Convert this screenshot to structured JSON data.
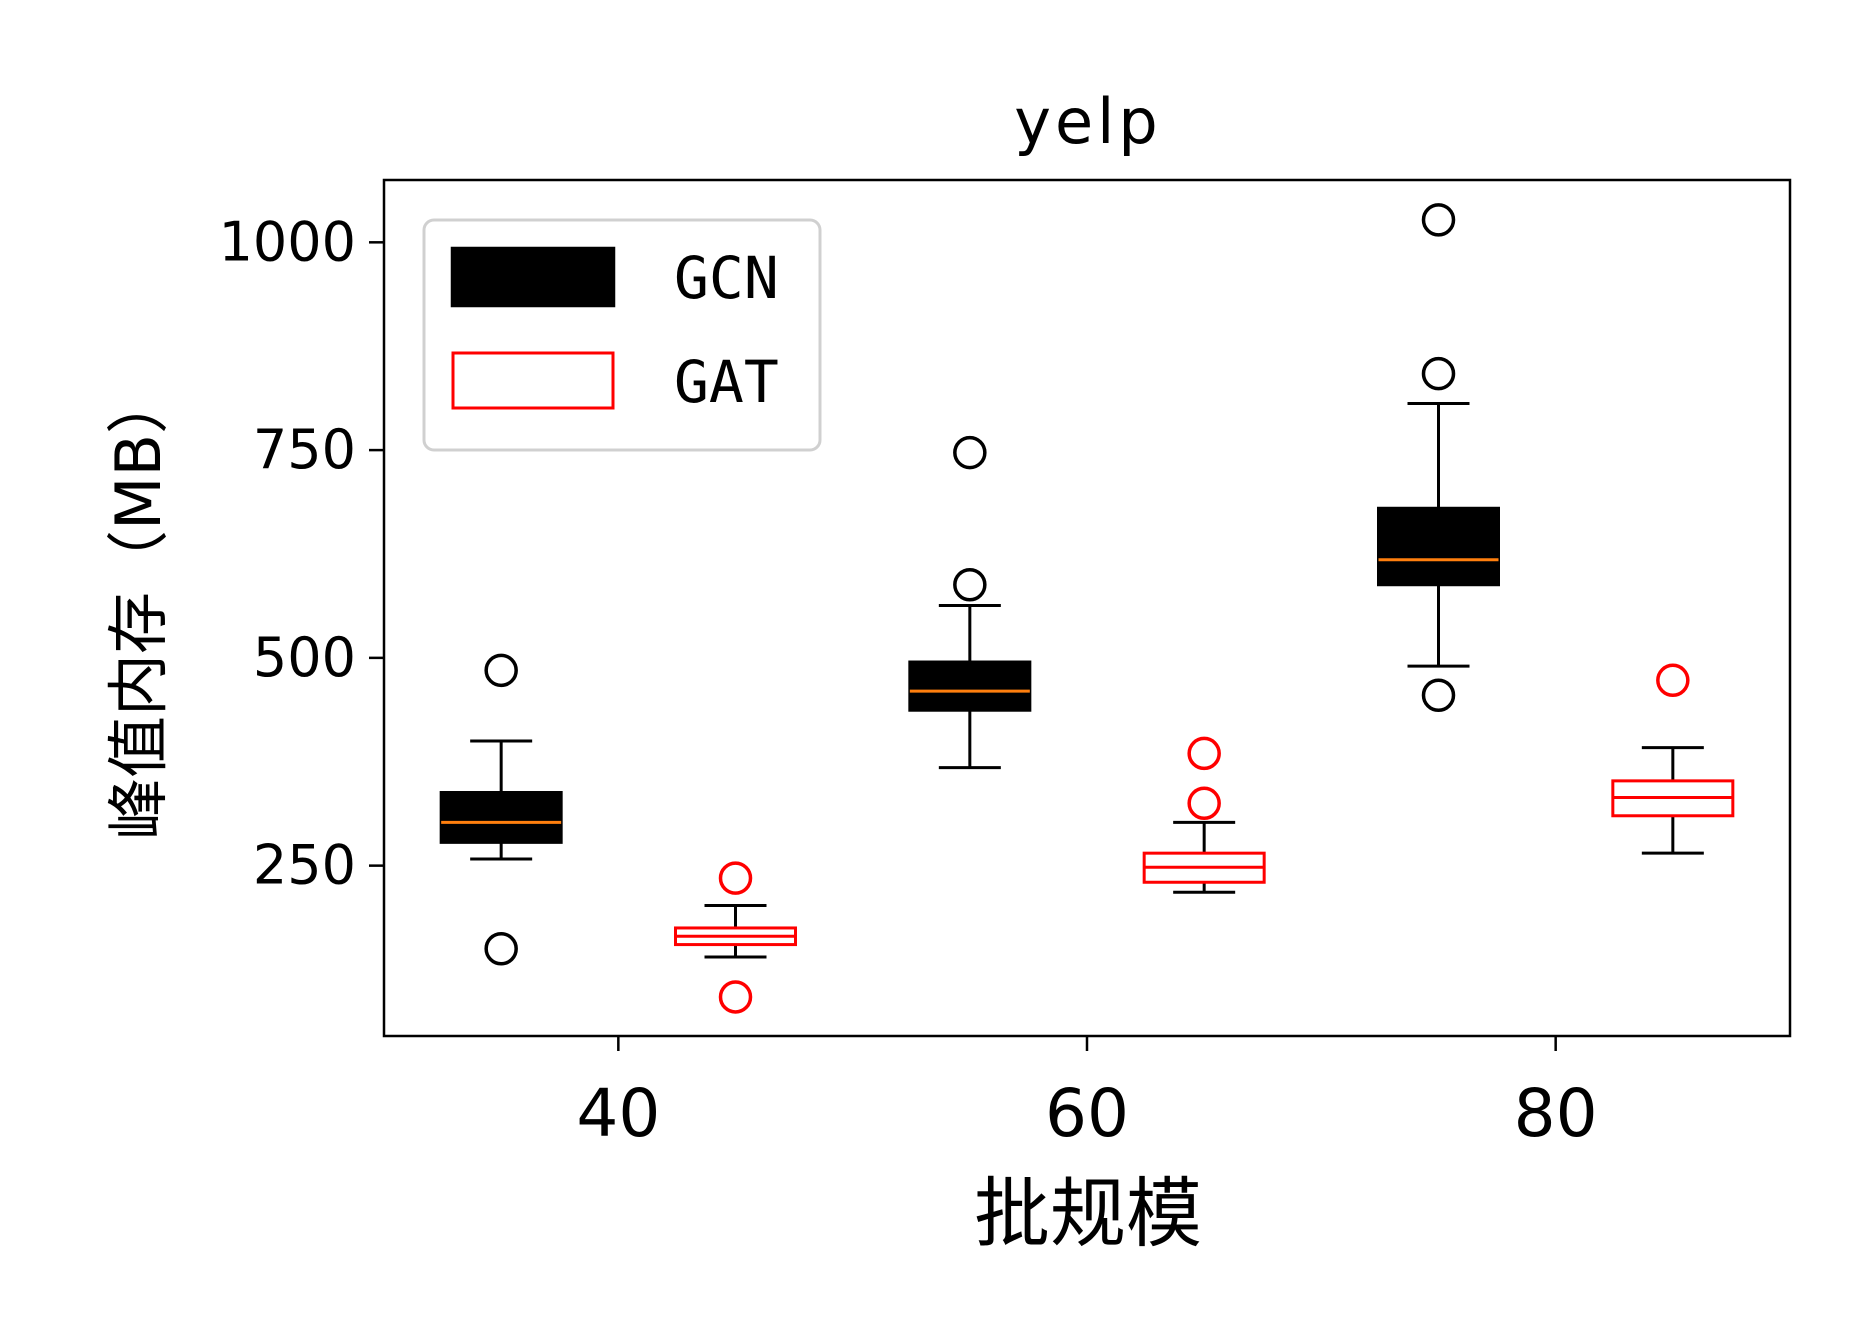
{
  "chart_data": {
    "type": "box",
    "title": "yelp",
    "xlabel": "批规模",
    "ylabel": "峰值内存（MB）",
    "xlim": [
      30,
      90
    ],
    "ylim": [
      45,
      1075
    ],
    "xticks": [
      40,
      60,
      80
    ],
    "yticks": [
      250,
      500,
      750,
      1000
    ],
    "grid": false,
    "legend_position": "top-left",
    "series": [
      {
        "name": "GCN",
        "style": "filled",
        "box_color": "#000000",
        "median_color": "#ff7f0e",
        "flier_color": "#000000",
        "boxes": [
          {
            "x": 35,
            "whisker_low": 258,
            "q1": 278,
            "median": 302,
            "q3": 338,
            "whisker_high": 400,
            "fliers": [
              150,
              485
            ]
          },
          {
            "x": 55,
            "whisker_low": 368,
            "q1": 437,
            "median": 460,
            "q3": 495,
            "whisker_high": 563,
            "fliers": [
              588,
              747
            ]
          },
          {
            "x": 75,
            "whisker_low": 490,
            "q1": 588,
            "median": 618,
            "q3": 680,
            "whisker_high": 806,
            "fliers": [
              455,
              842,
              1027
            ]
          }
        ]
      },
      {
        "name": "GAT",
        "style": "outline",
        "box_color": "#ff0000",
        "median_color": "#ff0000",
        "flier_color": "#ff0000",
        "boxes": [
          {
            "x": 45,
            "whisker_low": 140,
            "q1": 155,
            "median": 165,
            "q3": 175,
            "whisker_high": 202,
            "fliers": [
              92,
              235
            ]
          },
          {
            "x": 65,
            "whisker_low": 218,
            "q1": 230,
            "median": 248,
            "q3": 265,
            "whisker_high": 302,
            "fliers": [
              325,
              385
            ]
          },
          {
            "x": 85,
            "whisker_low": 265,
            "q1": 310,
            "median": 332,
            "q3": 352,
            "whisker_high": 392,
            "fliers": [
              473
            ]
          }
        ]
      }
    ]
  }
}
